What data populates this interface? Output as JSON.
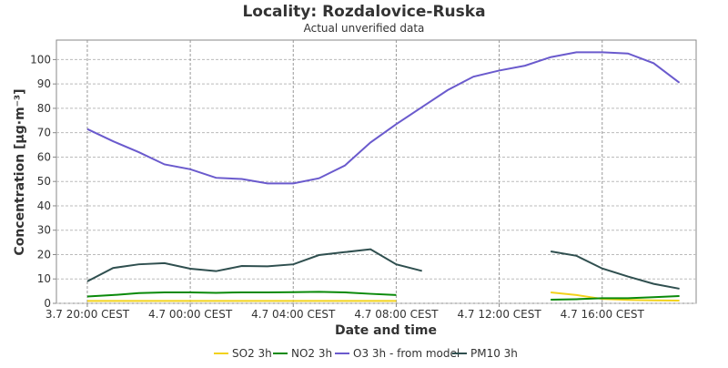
{
  "chart_data": {
    "type": "line",
    "title": "Locality: Rozdalovice-Ruska",
    "subtitle": "Actual unverified data",
    "x_label": "Date and time",
    "y_label": "Concentration [µg·m⁻³]",
    "x": [
      0,
      1,
      2,
      3,
      4,
      5,
      6,
      7,
      8,
      9,
      10,
      11,
      12,
      13,
      14,
      15,
      16,
      17,
      18,
      19,
      20,
      21,
      22,
      23
    ],
    "xlim": [
      -1.2,
      23.65
    ],
    "xticks": [
      {
        "value": 0,
        "label": "3.7 20:00 CEST"
      },
      {
        "value": 4,
        "label": "4.7 00:00 CEST"
      },
      {
        "value": 8,
        "label": "4.7 04:00 CEST"
      },
      {
        "value": 12,
        "label": "4.7 08:00 CEST"
      },
      {
        "value": 16,
        "label": "4.7 12:00 CEST"
      },
      {
        "value": 20,
        "label": "4.7 16:00 CEST"
      }
    ],
    "ylim": [
      0,
      108
    ],
    "yticks": [
      0,
      10,
      20,
      30,
      40,
      50,
      60,
      70,
      80,
      90,
      100
    ],
    "grid": true,
    "legend": "bottom",
    "series": [
      {
        "name": "SO2 3h",
        "color": "#f2d21b",
        "values": [
          1,
          1,
          1,
          1,
          1,
          1,
          1,
          1,
          1,
          1,
          1,
          1,
          1,
          null,
          null,
          null,
          null,
          null,
          4.5,
          3.4,
          1.8,
          1.4,
          1.2,
          1.1
        ]
      },
      {
        "name": "NO2 3h",
        "color": "#0a8a0a",
        "values": [
          2.8,
          3.4,
          4.2,
          4.5,
          4.5,
          4.3,
          4.5,
          4.5,
          4.6,
          4.7,
          4.5,
          3.9,
          3.4,
          null,
          null,
          null,
          null,
          null,
          1.5,
          1.7,
          2.1,
          2.1,
          2.5,
          3.0
        ]
      },
      {
        "name": "O3 3h - from model",
        "color": "#6a5acd",
        "values": [
          71.5,
          66.5,
          62,
          57,
          55,
          51.5,
          51,
          49.2,
          49.2,
          51.3,
          56.5,
          66,
          73.5,
          80.5,
          87.5,
          93,
          95.5,
          97.5,
          101,
          103,
          103,
          102.5,
          98.5,
          90.5
        ]
      },
      {
        "name": "PM10 3h",
        "color": "#2f4f4f",
        "values": [
          9,
          14.5,
          16,
          16.5,
          14.2,
          13.2,
          15.3,
          15.2,
          16,
          19.8,
          21,
          22.2,
          16,
          13.3,
          null,
          null,
          null,
          null,
          21.3,
          19.5,
          14.3,
          11,
          8,
          6
        ]
      }
    ]
  }
}
